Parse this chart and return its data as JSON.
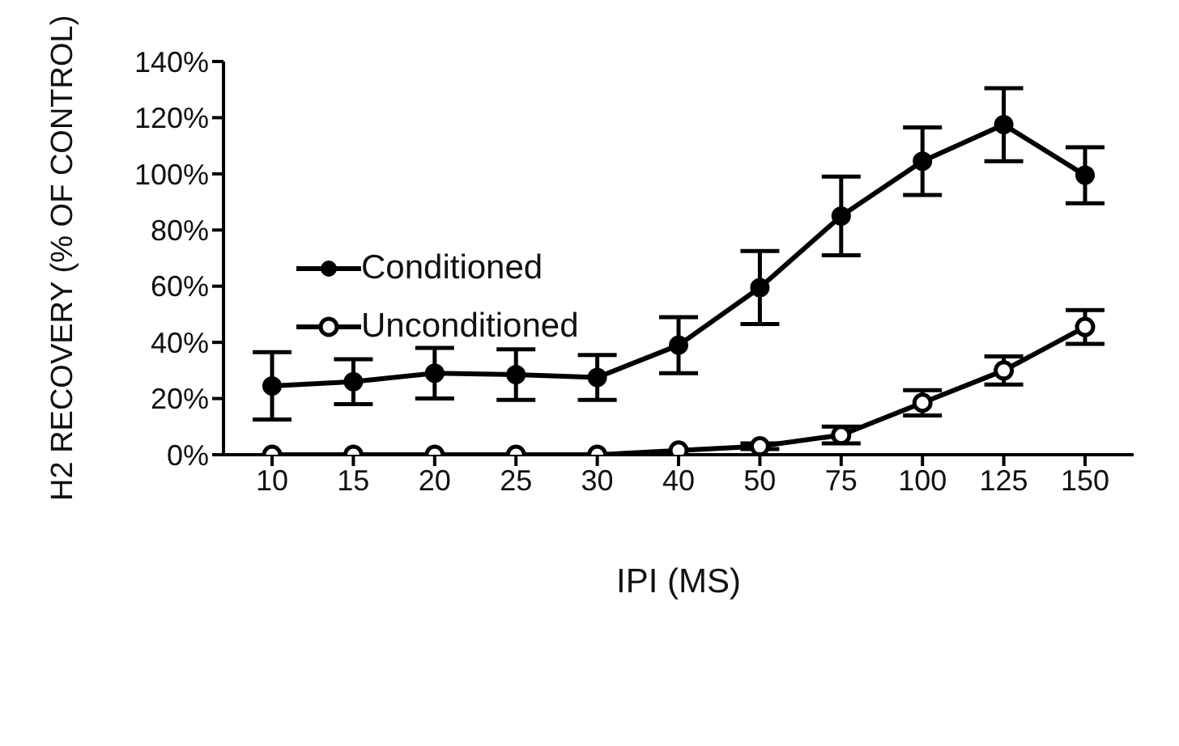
{
  "chart_data": {
    "type": "line",
    "xlabel": "IPI (MS)",
    "ylabel": "H2 RECOVERY (% OF CONTROL)",
    "categories": [
      "10",
      "15",
      "20",
      "25",
      "30",
      "40",
      "50",
      "75",
      "100",
      "125",
      "150"
    ],
    "series": [
      {
        "name": "Conditioned",
        "color": "#000000",
        "marker": "circle",
        "values": [
          24.5,
          26,
          29,
          28.5,
          27.5,
          39,
          59.5,
          85,
          104.5,
          117.5,
          99.5
        ],
        "errors": [
          12,
          8,
          9,
          9,
          8,
          10,
          13,
          14,
          12,
          13,
          10
        ]
      },
      {
        "name": "Unconditioned",
        "color": "#000000",
        "marker": "open circle",
        "values": [
          0,
          0,
          0,
          0,
          0,
          1.5,
          3,
          7,
          18.5,
          30,
          45.5
        ],
        "errors": [
          null,
          null,
          null,
          null,
          null,
          null,
          1,
          3,
          4.5,
          5,
          6
        ]
      }
    ],
    "ylim": [
      0,
      140
    ],
    "yticks": [
      {
        "value": 0,
        "label": "0%"
      },
      {
        "value": 20,
        "label": "20%"
      },
      {
        "value": 40,
        "label": "40%"
      },
      {
        "value": 60,
        "label": "60%"
      },
      {
        "value": 80,
        "label": "80%"
      },
      {
        "value": 100,
        "label": "100%"
      },
      {
        "value": 120,
        "label": "120%"
      },
      {
        "value": 140,
        "label": "140%"
      }
    ],
    "grid": false,
    "legend": "left",
    "line_style": "solid"
  }
}
